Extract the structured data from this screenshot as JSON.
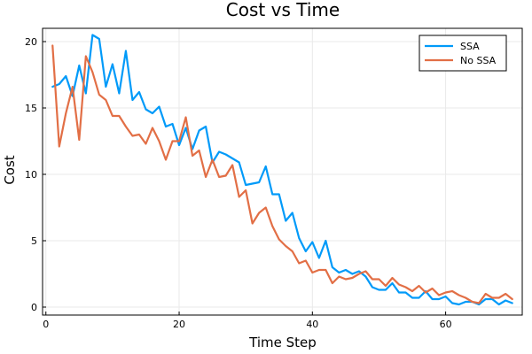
{
  "chart_data": {
    "type": "line",
    "title": "Cost vs Time",
    "xlabel": "Time Step",
    "ylabel": "Cost",
    "xlim": [
      -0.5,
      71.5
    ],
    "ylim": [
      -0.6,
      21.0
    ],
    "xticks": [
      0,
      20,
      40,
      60
    ],
    "yticks": [
      0,
      5,
      10,
      15,
      20
    ],
    "grid": true,
    "legend_position": "top-right",
    "series": [
      {
        "name": "SSA",
        "color": "#009af9",
        "x": [
          1,
          2,
          3,
          4,
          5,
          6,
          7,
          8,
          9,
          10,
          11,
          12,
          13,
          14,
          15,
          16,
          17,
          18,
          19,
          20,
          21,
          22,
          23,
          24,
          25,
          26,
          27,
          28,
          29,
          30,
          31,
          32,
          33,
          34,
          35,
          36,
          37,
          38,
          39,
          40,
          41,
          42,
          43,
          44,
          45,
          46,
          47,
          48,
          49,
          50,
          51,
          52,
          53,
          54,
          55,
          56,
          57,
          58,
          59,
          60,
          61,
          62,
          63,
          64,
          65,
          66,
          67,
          68,
          69,
          70
        ],
        "values": [
          16.6,
          16.8,
          17.4,
          15.9,
          18.2,
          16.1,
          20.5,
          20.2,
          16.6,
          18.3,
          16.1,
          19.3,
          15.6,
          16.2,
          14.9,
          14.6,
          15.1,
          13.6,
          13.8,
          12.2,
          13.5,
          11.9,
          13.3,
          13.6,
          10.9,
          11.7,
          11.5,
          11.2,
          10.9,
          9.2,
          9.3,
          9.4,
          10.6,
          8.5,
          8.5,
          6.5,
          7.1,
          5.2,
          4.2,
          4.9,
          3.7,
          5.0,
          3.0,
          2.6,
          2.8,
          2.5,
          2.7,
          2.3,
          1.5,
          1.3,
          1.3,
          1.8,
          1.1,
          1.1,
          0.7,
          0.7,
          1.2,
          0.6,
          0.6,
          0.8,
          0.3,
          0.2,
          0.4,
          0.4,
          0.2,
          0.6,
          0.6,
          0.2,
          0.5,
          0.3
        ]
      },
      {
        "name": "No SSA",
        "color": "#e26f46",
        "x": [
          1,
          2,
          3,
          4,
          5,
          6,
          7,
          8,
          9,
          10,
          11,
          12,
          13,
          14,
          15,
          16,
          17,
          18,
          19,
          20,
          21,
          22,
          23,
          24,
          25,
          26,
          27,
          28,
          29,
          30,
          31,
          32,
          33,
          34,
          35,
          36,
          37,
          38,
          39,
          40,
          41,
          42,
          43,
          44,
          45,
          46,
          47,
          48,
          49,
          50,
          51,
          52,
          53,
          54,
          55,
          56,
          57,
          58,
          59,
          60,
          61,
          62,
          63,
          64,
          65,
          66,
          67,
          68,
          69,
          70
        ],
        "values": [
          19.7,
          12.1,
          14.6,
          16.6,
          12.6,
          18.9,
          17.7,
          16.0,
          15.6,
          14.4,
          14.4,
          13.6,
          12.9,
          13.0,
          12.3,
          13.5,
          12.5,
          11.1,
          12.5,
          12.5,
          14.3,
          11.4,
          11.8,
          9.8,
          11.1,
          9.8,
          9.9,
          10.7,
          8.3,
          8.8,
          6.3,
          7.1,
          7.5,
          6.1,
          5.1,
          4.6,
          4.2,
          3.3,
          3.5,
          2.6,
          2.8,
          2.8,
          1.8,
          2.3,
          2.1,
          2.2,
          2.5,
          2.7,
          2.1,
          2.1,
          1.6,
          2.2,
          1.7,
          1.5,
          1.2,
          1.6,
          1.1,
          1.4,
          0.9,
          1.1,
          1.2,
          0.9,
          0.7,
          0.4,
          0.3,
          1.0,
          0.7,
          0.7,
          1.0,
          0.6
        ]
      }
    ]
  }
}
